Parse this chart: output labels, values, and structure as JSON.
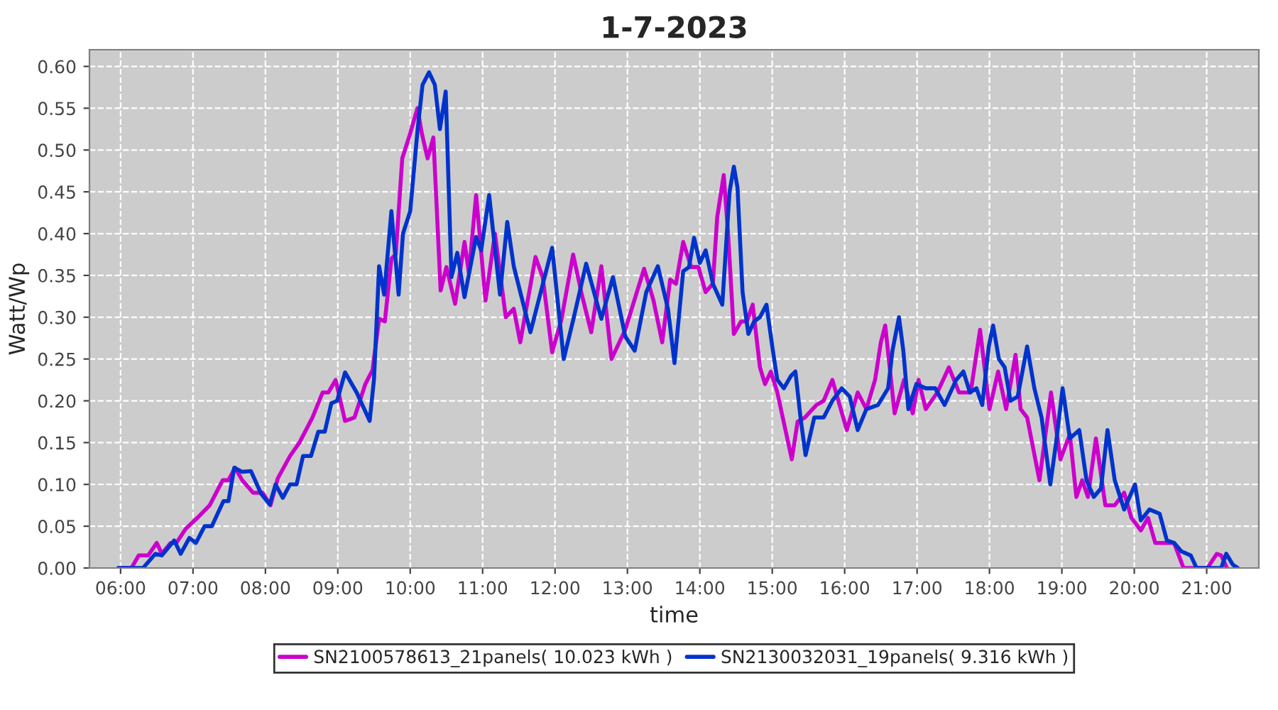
{
  "chart_data": {
    "type": "line",
    "title": "1-7-2023",
    "xlabel": "time",
    "ylabel": "Watt/Wp",
    "xlim": [
      5.57,
      21.72
    ],
    "xticks": [
      {
        "value": 6,
        "label": "06:00"
      },
      {
        "value": 7,
        "label": "07:00"
      },
      {
        "value": 8,
        "label": "08:00"
      },
      {
        "value": 9,
        "label": "09:00"
      },
      {
        "value": 10,
        "label": "10:00"
      },
      {
        "value": 11,
        "label": "11:00"
      },
      {
        "value": 12,
        "label": "12:00"
      },
      {
        "value": 13,
        "label": "13:00"
      },
      {
        "value": 14,
        "label": "14:00"
      },
      {
        "value": 15,
        "label": "15:00"
      },
      {
        "value": 16,
        "label": "16:00"
      },
      {
        "value": 17,
        "label": "17:00"
      },
      {
        "value": 18,
        "label": "18:00"
      },
      {
        "value": 19,
        "label": "19:00"
      },
      {
        "value": 20,
        "label": "20:00"
      },
      {
        "value": 21,
        "label": "21:00"
      }
    ],
    "ylim": [
      0,
      0.62
    ],
    "yticks": [
      {
        "value": 0,
        "label": "0.00"
      },
      {
        "value": 0.05,
        "label": "0.05"
      },
      {
        "value": 0.1,
        "label": "0.10"
      },
      {
        "value": 0.15,
        "label": "0.15"
      },
      {
        "value": 0.2,
        "label": "0.20"
      },
      {
        "value": 0.25,
        "label": "0.25"
      },
      {
        "value": 0.3,
        "label": "0.30"
      },
      {
        "value": 0.35,
        "label": "0.35"
      },
      {
        "value": 0.4,
        "label": "0.40"
      },
      {
        "value": 0.45,
        "label": "0.45"
      },
      {
        "value": 0.5,
        "label": "0.50"
      },
      {
        "value": 0.55,
        "label": "0.55"
      },
      {
        "value": 0.6,
        "label": "0.60"
      }
    ],
    "grid": true,
    "legend": "bottom",
    "line_style": "solid",
    "series": [
      {
        "name": "SN2100578613_21panels( 10.023 kWh )",
        "color": "#cc00cc",
        "x": [
          5.97,
          6.15,
          6.25,
          6.38,
          6.5,
          6.57,
          6.69,
          6.77,
          6.9,
          7.06,
          7.23,
          7.41,
          7.49,
          7.58,
          7.68,
          7.83,
          7.96,
          8.07,
          8.17,
          8.34,
          8.47,
          8.65,
          8.79,
          8.87,
          8.97,
          9.1,
          9.23,
          9.38,
          9.48,
          9.57,
          9.65,
          9.74,
          9.8,
          9.89,
          10.0,
          10.1,
          10.16,
          10.24,
          10.32,
          10.42,
          10.5,
          10.62,
          10.75,
          10.81,
          10.91,
          11.04,
          11.17,
          11.32,
          11.43,
          11.52,
          11.73,
          11.83,
          11.96,
          12.09,
          12.25,
          12.37,
          12.5,
          12.64,
          12.78,
          12.97,
          13.23,
          13.36,
          13.48,
          13.59,
          13.67,
          13.77,
          13.88,
          13.98,
          14.08,
          14.18,
          14.24,
          14.33,
          14.39,
          14.47,
          14.57,
          14.65,
          14.73,
          14.83,
          14.9,
          14.98,
          15.07,
          15.27,
          15.35,
          15.45,
          15.61,
          15.71,
          15.83,
          15.93,
          16.03,
          16.18,
          16.3,
          16.42,
          16.5,
          16.56,
          16.69,
          16.82,
          16.94,
          17.02,
          17.12,
          17.28,
          17.44,
          17.58,
          17.74,
          17.87,
          18.0,
          18.12,
          18.23,
          18.36,
          18.43,
          18.52,
          18.69,
          18.85,
          18.98,
          19.11,
          19.2,
          19.28,
          19.36,
          19.47,
          19.6,
          19.73,
          19.86,
          19.96,
          20.09,
          20.19,
          20.29,
          20.42,
          20.55,
          20.68,
          21.01,
          21.14,
          21.2,
          21.28
        ],
        "values": [
          0,
          0,
          0.015,
          0.015,
          0.03,
          0.017,
          0.03,
          0.03,
          0.047,
          0.06,
          0.075,
          0.105,
          0.105,
          0.12,
          0.105,
          0.09,
          0.09,
          0.075,
          0.107,
          0.134,
          0.15,
          0.18,
          0.21,
          0.21,
          0.225,
          0.176,
          0.18,
          0.22,
          0.237,
          0.298,
          0.295,
          0.37,
          0.375,
          0.49,
          0.52,
          0.55,
          0.52,
          0.49,
          0.515,
          0.332,
          0.36,
          0.316,
          0.39,
          0.353,
          0.446,
          0.32,
          0.4,
          0.3,
          0.31,
          0.27,
          0.372,
          0.348,
          0.258,
          0.298,
          0.375,
          0.327,
          0.282,
          0.361,
          0.25,
          0.285,
          0.358,
          0.32,
          0.27,
          0.345,
          0.34,
          0.39,
          0.36,
          0.36,
          0.33,
          0.34,
          0.42,
          0.47,
          0.4,
          0.28,
          0.295,
          0.295,
          0.315,
          0.24,
          0.22,
          0.235,
          0.21,
          0.13,
          0.175,
          0.18,
          0.195,
          0.2,
          0.225,
          0.195,
          0.165,
          0.21,
          0.19,
          0.225,
          0.27,
          0.29,
          0.185,
          0.225,
          0.185,
          0.225,
          0.19,
          0.21,
          0.24,
          0.21,
          0.21,
          0.285,
          0.19,
          0.235,
          0.19,
          0.255,
          0.19,
          0.18,
          0.105,
          0.21,
          0.13,
          0.16,
          0.085,
          0.105,
          0.085,
          0.155,
          0.075,
          0.075,
          0.09,
          0.06,
          0.045,
          0.06,
          0.03,
          0.03,
          0.03,
          0,
          0,
          0.017,
          0.015,
          0
        ]
      },
      {
        "name": "SN2130032031_19panels( 9.316 kWh )",
        "color": "#0033cc",
        "x": [
          5.97,
          6.31,
          6.48,
          6.57,
          6.74,
          6.83,
          6.95,
          7.04,
          7.16,
          7.26,
          7.42,
          7.49,
          7.57,
          7.68,
          7.8,
          7.94,
          8.06,
          8.14,
          8.24,
          8.34,
          8.43,
          8.52,
          8.63,
          8.73,
          8.82,
          8.91,
          8.99,
          9.1,
          9.26,
          9.44,
          9.5,
          9.57,
          9.64,
          9.74,
          9.77,
          9.84,
          9.9,
          10.0,
          10.1,
          10.17,
          10.26,
          10.34,
          10.41,
          10.49,
          10.57,
          10.65,
          10.75,
          10.91,
          10.98,
          11.09,
          11.24,
          11.34,
          11.43,
          11.66,
          11.96,
          12.12,
          12.26,
          12.43,
          12.64,
          12.8,
          12.97,
          13.1,
          13.26,
          13.42,
          13.56,
          13.65,
          13.77,
          13.85,
          13.92,
          14.0,
          14.08,
          14.18,
          14.31,
          14.41,
          14.47,
          14.52,
          14.59,
          14.67,
          14.75,
          14.83,
          14.92,
          15.0,
          15.07,
          15.16,
          15.26,
          15.32,
          15.39,
          15.46,
          15.58,
          15.71,
          15.83,
          15.96,
          16.07,
          16.18,
          16.3,
          16.46,
          16.6,
          16.66,
          16.75,
          16.81,
          16.88,
          16.99,
          17.12,
          17.25,
          17.38,
          17.54,
          17.64,
          17.73,
          17.82,
          17.9,
          17.99,
          18.05,
          18.13,
          18.21,
          18.29,
          18.39,
          18.52,
          18.62,
          18.72,
          18.84,
          18.92,
          19.01,
          19.11,
          19.24,
          19.34,
          19.44,
          19.54,
          19.63,
          19.73,
          19.86,
          20.01,
          20.09,
          20.21,
          20.35,
          20.45,
          20.55,
          20.65,
          20.78,
          20.86,
          21.2,
          21.27,
          21.36,
          21.43
        ],
        "values": [
          0,
          0,
          0.017,
          0.015,
          0.033,
          0.017,
          0.036,
          0.03,
          0.05,
          0.05,
          0.08,
          0.08,
          0.12,
          0.115,
          0.116,
          0.089,
          0.076,
          0.1,
          0.084,
          0.1,
          0.1,
          0.134,
          0.134,
          0.163,
          0.163,
          0.197,
          0.2,
          0.234,
          0.21,
          0.176,
          0.226,
          0.361,
          0.327,
          0.427,
          0.396,
          0.327,
          0.4,
          0.427,
          0.523,
          0.578,
          0.593,
          0.578,
          0.525,
          0.57,
          0.348,
          0.377,
          0.324,
          0.396,
          0.38,
          0.446,
          0.327,
          0.414,
          0.361,
          0.282,
          0.383,
          0.25,
          0.3,
          0.364,
          0.298,
          0.348,
          0.277,
          0.26,
          0.33,
          0.361,
          0.31,
          0.245,
          0.355,
          0.36,
          0.395,
          0.365,
          0.38,
          0.34,
          0.315,
          0.45,
          0.48,
          0.455,
          0.33,
          0.28,
          0.295,
          0.3,
          0.315,
          0.265,
          0.225,
          0.215,
          0.23,
          0.235,
          0.18,
          0.135,
          0.18,
          0.18,
          0.2,
          0.215,
          0.205,
          0.165,
          0.19,
          0.195,
          0.215,
          0.26,
          0.3,
          0.26,
          0.19,
          0.22,
          0.215,
          0.215,
          0.195,
          0.225,
          0.235,
          0.21,
          0.215,
          0.195,
          0.265,
          0.29,
          0.25,
          0.24,
          0.2,
          0.205,
          0.265,
          0.215,
          0.18,
          0.1,
          0.15,
          0.215,
          0.155,
          0.165,
          0.105,
          0.085,
          0.095,
          0.165,
          0.105,
          0.07,
          0.1,
          0.057,
          0.07,
          0.065,
          0.033,
          0.03,
          0.02,
          0.015,
          0,
          0,
          0.017,
          0.004,
          0
        ]
      }
    ]
  }
}
